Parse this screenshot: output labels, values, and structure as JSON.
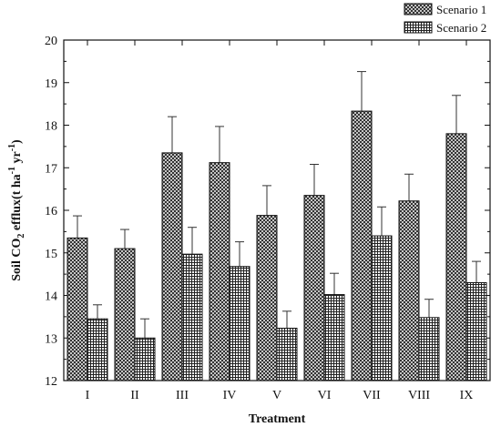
{
  "chart_data": {
    "type": "bar",
    "title": "",
    "xlabel": "Treatment",
    "ylabel": "Soil CO2 efflux(t ha-1 yr-1)",
    "ylabel_parts": [
      "Soil CO",
      "2",
      " efflux(t ha",
      "-1",
      " yr",
      "-1",
      ")"
    ],
    "categories": [
      "I",
      "II",
      "III",
      "IV",
      "V",
      "VI",
      "VII",
      "VIII",
      "IX"
    ],
    "ylim": [
      12,
      20
    ],
    "yticks": [
      12,
      13,
      14,
      15,
      16,
      17,
      18,
      19,
      20
    ],
    "legend_position": "top-right, outside plot",
    "grid": false,
    "series": [
      {
        "name": "Scenario 1",
        "pattern": "crosshatch",
        "values": [
          15.35,
          15.1,
          17.35,
          17.12,
          15.88,
          16.35,
          18.33,
          16.22,
          17.8
        ],
        "errors": [
          0.52,
          0.45,
          0.85,
          0.85,
          0.7,
          0.73,
          0.93,
          0.63,
          0.9
        ]
      },
      {
        "name": "Scenario 2",
        "pattern": "grid",
        "values": [
          13.45,
          13.0,
          14.97,
          14.68,
          13.23,
          14.02,
          15.4,
          13.48,
          14.3
        ],
        "errors": [
          0.33,
          0.45,
          0.63,
          0.58,
          0.4,
          0.5,
          0.68,
          0.43,
          0.5
        ]
      }
    ]
  }
}
